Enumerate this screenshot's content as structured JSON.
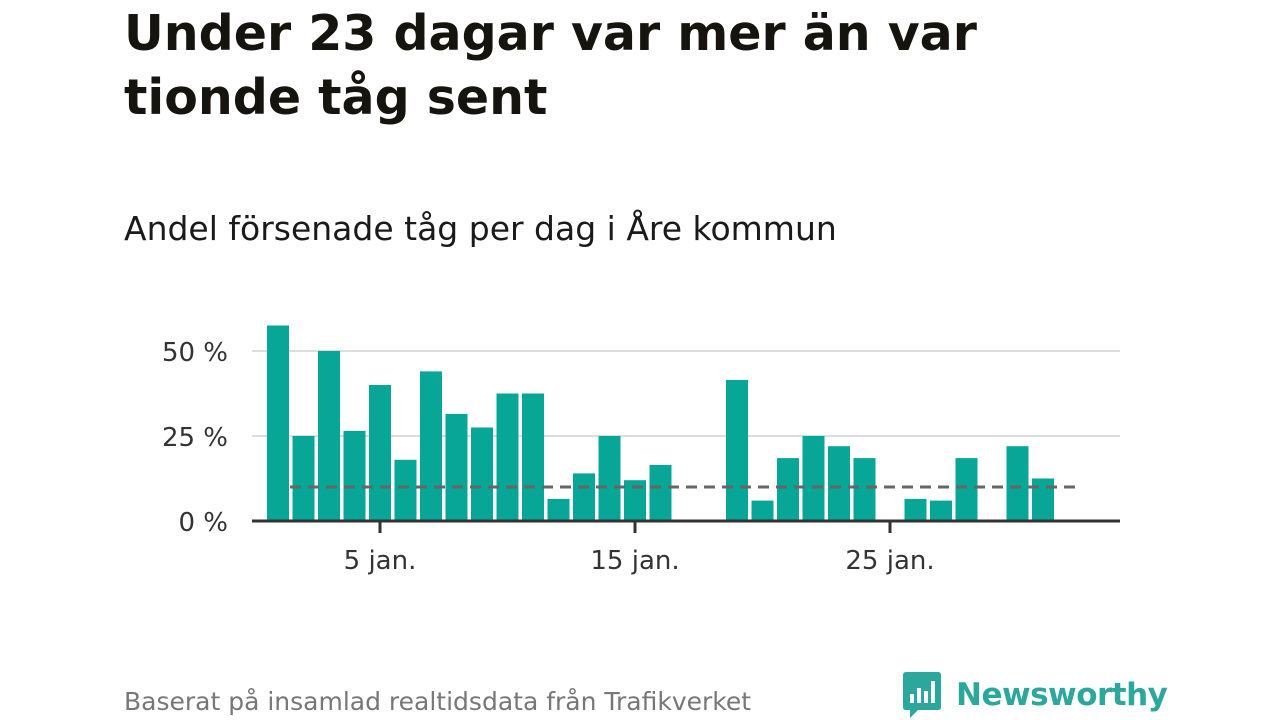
{
  "title": "Under 23 dagar var mer än var tionde tåg sent",
  "subtitle": "Andel försenade tåg per dag i Åre kommun",
  "source": "Baserat på insamlad realtidsdata från Trafikverket",
  "brand": {
    "name": "Newsworthy",
    "color": "#2ba89b",
    "icon": "newsworthy-logo-icon"
  },
  "colors": {
    "bar": "#07a697",
    "reference_line": "#666666",
    "grid": "#dddddd",
    "axis": "#333333"
  },
  "chart_data": {
    "type": "bar",
    "x": [
      1,
      2,
      3,
      4,
      5,
      6,
      7,
      8,
      9,
      10,
      11,
      12,
      13,
      14,
      15,
      16,
      17,
      18,
      19,
      20,
      21,
      22,
      23,
      24,
      25,
      26,
      27,
      28,
      29,
      30,
      31
    ],
    "values": [
      57.5,
      25,
      50,
      26.5,
      40,
      18,
      44,
      31.5,
      27.5,
      37.5,
      37.5,
      6.5,
      14,
      25,
      12,
      16.5,
      0,
      0,
      41.5,
      6,
      18.5,
      25,
      22,
      18.5,
      0,
      6.5,
      6,
      18.5,
      0,
      22,
      12.5
    ],
    "x_ticks": [
      {
        "x": 5,
        "label": "5 jan."
      },
      {
        "x": 15,
        "label": "15 jan."
      },
      {
        "x": 25,
        "label": "25 jan."
      }
    ],
    "y_ticks": [
      {
        "y": 0,
        "label": "0 %"
      },
      {
        "y": 25,
        "label": "25 %"
      },
      {
        "y": 50,
        "label": "50 %"
      }
    ],
    "reference_line": 10,
    "ylim": [
      0,
      60
    ],
    "xlim": [
      0,
      32
    ],
    "grid": true,
    "legend": "none"
  }
}
